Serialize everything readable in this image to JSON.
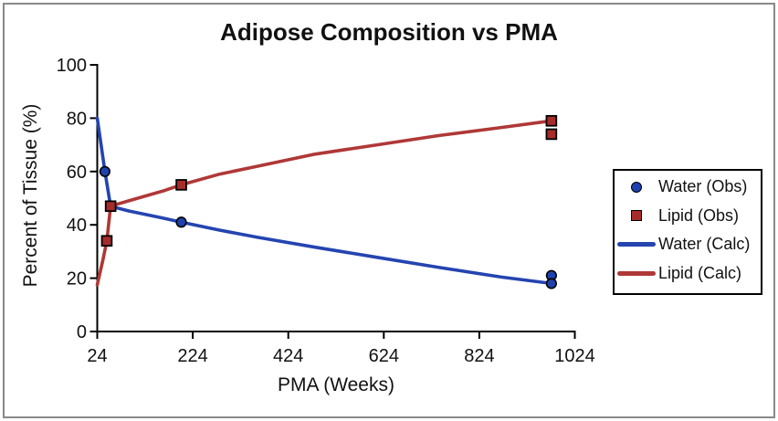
{
  "chart_data": {
    "type": "line",
    "title": "Adipose Composition vs PMA",
    "xlabel": "PMA (Weeks)",
    "ylabel": "Percent of Tissue (%)",
    "xlim": [
      24,
      1024
    ],
    "ylim": [
      0,
      100
    ],
    "x_ticks": [
      24,
      224,
      424,
      624,
      824,
      1024
    ],
    "y_ticks": [
      0,
      20,
      40,
      60,
      80,
      100
    ],
    "grid": false,
    "legend_position": "right",
    "series": [
      {
        "name": "Water (Obs)",
        "kind": "scatter",
        "marker": "circle",
        "color": "#1E41AE",
        "points": [
          [
            40,
            60
          ],
          [
            200,
            41
          ],
          [
            975,
            21
          ],
          [
            975,
            18
          ]
        ]
      },
      {
        "name": "Lipid (Obs)",
        "kind": "scatter",
        "marker": "square",
        "color": "#A82B2B",
        "points": [
          [
            44,
            34
          ],
          [
            52,
            47
          ],
          [
            200,
            55
          ],
          [
            975,
            79
          ],
          [
            975,
            74
          ]
        ]
      },
      {
        "name": "Water (Calc)",
        "kind": "line",
        "color": "#2444B0",
        "points": [
          [
            24,
            80
          ],
          [
            40,
            60
          ],
          [
            52,
            47
          ],
          [
            90,
            45.2
          ],
          [
            160,
            42.6
          ],
          [
            200,
            41
          ],
          [
            280,
            38
          ],
          [
            360,
            35.3
          ],
          [
            480,
            31.6
          ],
          [
            610,
            27.8
          ],
          [
            740,
            24
          ],
          [
            870,
            20.4
          ],
          [
            975,
            18
          ]
        ]
      },
      {
        "name": "Lipid (Calc)",
        "kind": "line",
        "color": "#AF3837",
        "points": [
          [
            24,
            17.5
          ],
          [
            36,
            27
          ],
          [
            44,
            34
          ],
          [
            52,
            47
          ],
          [
            90,
            49
          ],
          [
            160,
            52.6
          ],
          [
            200,
            55
          ],
          [
            280,
            59
          ],
          [
            360,
            62
          ],
          [
            480,
            66.5
          ],
          [
            610,
            70
          ],
          [
            740,
            73.5
          ],
          [
            870,
            76.5
          ],
          [
            975,
            79
          ]
        ]
      }
    ]
  },
  "legend": {
    "items": [
      {
        "label": "Water (Obs)",
        "marker": "circle",
        "color": "#1E41AE"
      },
      {
        "label": "Lipid (Obs)",
        "marker": "square",
        "color": "#A82B2B"
      },
      {
        "label": "Water (Calc)",
        "marker": "line",
        "color": "#2444B0"
      },
      {
        "label": "Lipid (Calc)",
        "marker": "line",
        "color": "#AF3837"
      }
    ]
  },
  "colors": {
    "water": "#2444B0",
    "lipid": "#AF3837",
    "axis": "#000000",
    "text": "#111111",
    "frame_border": "#898989"
  }
}
